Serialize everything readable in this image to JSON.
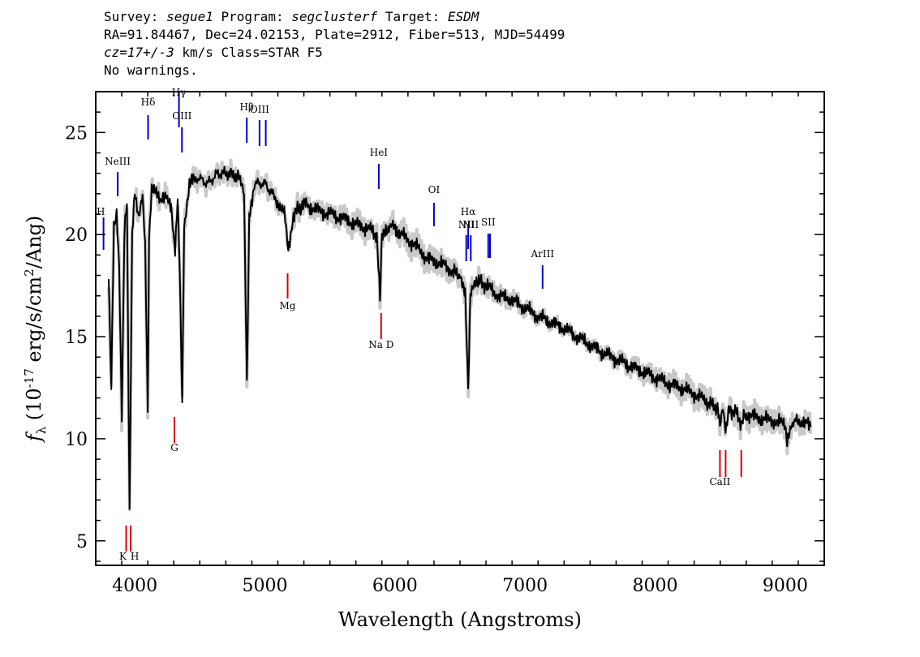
{
  "header": {
    "survey_label": "Survey:",
    "survey": "segue1",
    "program_label": "Program:",
    "program": "segclusterf",
    "target_label": "Target:",
    "target": "ESDM",
    "line2": "RA=91.84467, Dec=24.02153, Plate=2912, Fiber=513, MJD=54499",
    "cz": "cz=17+/-3",
    "cz_rest": " km/s Class=STAR F5",
    "warnings": "No warnings."
  },
  "chart_data": {
    "type": "line",
    "xlabel": "Wavelength (Angstroms)",
    "ylabel": "f_λ (10^-17 erg/s/cm^2/Ang)",
    "xlim": [
      3700,
      9300
    ],
    "ylim": [
      3.8,
      27.0
    ],
    "x_ticks": [
      4000,
      5000,
      6000,
      7000,
      8000,
      9000
    ],
    "y_ticks": [
      5,
      10,
      15,
      20,
      25
    ],
    "grid": false,
    "series": [
      {
        "color": "#000000",
        "error_color": "#bbbbbb",
        "x": [
          3800,
          3820,
          3840,
          3860,
          3880,
          3900,
          3920,
          3940,
          3960,
          3980,
          4000,
          4030,
          4060,
          4080,
          4100,
          4110,
          4130,
          4160,
          4200,
          4240,
          4280,
          4310,
          4330,
          4345,
          4365,
          4380,
          4420,
          4480,
          4560,
          4640,
          4720,
          4800,
          4840,
          4862,
          4880,
          4920,
          5000,
          5080,
          5150,
          5180,
          5220,
          5300,
          5400,
          5500,
          5600,
          5700,
          5800,
          5860,
          5885,
          5900,
          5960,
          6050,
          6150,
          6250,
          6350,
          6450,
          6500,
          6540,
          6563,
          6580,
          6620,
          6700,
          6800,
          6900,
          7000,
          7100,
          7200,
          7300,
          7400,
          7500,
          7600,
          7700,
          7800,
          7900,
          8000,
          8100,
          8200,
          8300,
          8400,
          8480,
          8498,
          8520,
          8542,
          8570,
          8620,
          8662,
          8700,
          8800,
          8900,
          9000,
          9015,
          9050,
          9100,
          9200
        ],
        "values": [
          18.0,
          12.5,
          20.5,
          21.0,
          18.5,
          11.0,
          20.0,
          21.5,
          6.3,
          20.0,
          22.0,
          21.0,
          21.8,
          19.5,
          11.2,
          19.5,
          22.5,
          22.0,
          21.5,
          22.0,
          21.5,
          19.0,
          22.0,
          18.5,
          11.8,
          20.5,
          22.5,
          22.8,
          22.5,
          23.0,
          23.0,
          22.8,
          22.0,
          12.5,
          21.0,
          22.5,
          22.5,
          21.8,
          21.0,
          19.3,
          21.0,
          21.5,
          21.2,
          21.0,
          20.8,
          20.5,
          20.3,
          20.0,
          16.8,
          19.8,
          20.5,
          20.0,
          19.5,
          18.8,
          18.6,
          18.2,
          18.0,
          17.0,
          12.2,
          17.0,
          17.8,
          17.5,
          17.0,
          16.8,
          16.4,
          16.0,
          15.7,
          15.4,
          15.0,
          14.6,
          14.2,
          13.9,
          13.6,
          13.3,
          13.0,
          12.7,
          12.5,
          12.2,
          11.8,
          11.5,
          10.5,
          11.4,
          10.2,
          11.4,
          11.3,
          10.8,
          11.2,
          11.0,
          10.9,
          10.7,
          9.7,
          10.8,
          10.9,
          10.6
        ]
      }
    ],
    "lines": [
      {
        "label": "H",
        "x": 3760,
        "type": "emission"
      },
      {
        "label": "NeIII",
        "x": 3869,
        "type": "emission"
      },
      {
        "label": "Hδ",
        "x": 4102,
        "type": "emission"
      },
      {
        "label": "Hγ",
        "x": 4340,
        "type": "emission"
      },
      {
        "label": "OIII",
        "x": 4363,
        "type": "emission"
      },
      {
        "label": "Hβ",
        "x": 4861,
        "type": "emission"
      },
      {
        "label": "OIII",
        "x": 4959,
        "type": "emission"
      },
      {
        "label": "",
        "x": 5007,
        "type": "emission"
      },
      {
        "label": "HeI",
        "x": 5876,
        "type": "emission"
      },
      {
        "label": "OI",
        "x": 6300,
        "type": "emission"
      },
      {
        "label": "NII",
        "x": 6548,
        "type": "emission"
      },
      {
        "label": "Hα",
        "x": 6563,
        "type": "emission"
      },
      {
        "label": "NII",
        "x": 6583,
        "type": "emission"
      },
      {
        "label": "SII",
        "x": 6717,
        "type": "emission"
      },
      {
        "label": "",
        "x": 6731,
        "type": "emission"
      },
      {
        "label": "ArIII",
        "x": 7135,
        "type": "emission"
      },
      {
        "label": "K",
        "x": 3934,
        "type": "absorption"
      },
      {
        "label": "H",
        "x": 3969,
        "type": "absorption"
      },
      {
        "label": "G",
        "x": 4305,
        "type": "absorption"
      },
      {
        "label": "Mg",
        "x": 5175,
        "type": "absorption"
      },
      {
        "label": "Na D",
        "x": 5894,
        "type": "absorption"
      },
      {
        "label": "CaII",
        "x": 8498,
        "type": "absorption"
      },
      {
        "label": "",
        "x": 8542,
        "type": "absorption"
      },
      {
        "label": "",
        "x": 8662,
        "type": "absorption"
      }
    ]
  }
}
